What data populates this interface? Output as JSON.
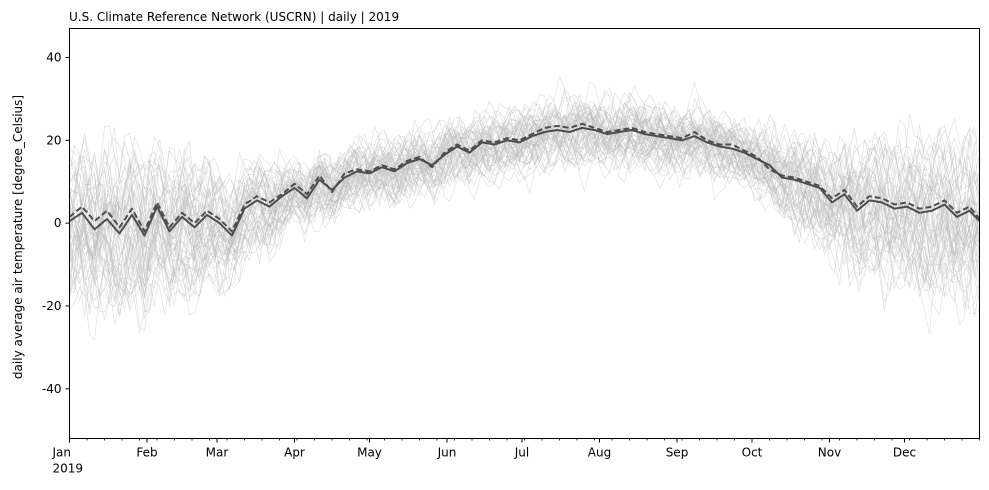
{
  "chart_data": {
    "type": "line",
    "title": "U.S. Climate Reference Network (USCRN) | daily | 2019",
    "xlabel": "",
    "ylabel": "daily average air temperature [degree_Celsius]",
    "xlim": [
      "2019-01-01",
      "2019-12-31"
    ],
    "ylim": [
      -52,
      47
    ],
    "yticks": [
      -40,
      -20,
      0,
      20,
      40
    ],
    "xticks": [
      {
        "date": "2019-01-01",
        "label": "Jan",
        "sublabel": "2019"
      },
      {
        "date": "2019-02-01",
        "label": "Feb"
      },
      {
        "date": "2019-03-01",
        "label": "Mar"
      },
      {
        "date": "2019-04-01",
        "label": "Apr"
      },
      {
        "date": "2019-05-01",
        "label": "May"
      },
      {
        "date": "2019-06-01",
        "label": "Jun"
      },
      {
        "date": "2019-07-01",
        "label": "Jul"
      },
      {
        "date": "2019-08-01",
        "label": "Aug"
      },
      {
        "date": "2019-09-01",
        "label": "Sep"
      },
      {
        "date": "2019-10-01",
        "label": "Oct"
      },
      {
        "date": "2019-11-01",
        "label": "Nov"
      },
      {
        "date": "2019-12-01",
        "label": "Dec"
      }
    ],
    "grid": false,
    "legend": "none",
    "colors": {
      "stations": "#bdbdbd",
      "mean": "#4d4d4d",
      "median": "#4d4d4d"
    },
    "series": [
      {
        "style": "solid",
        "x": [
          "2019-01-01",
          "2019-01-06",
          "2019-01-11",
          "2019-01-16",
          "2019-01-21",
          "2019-01-26",
          "2019-01-31",
          "2019-02-05",
          "2019-02-10",
          "2019-02-15",
          "2019-02-20",
          "2019-02-25",
          "2019-03-02",
          "2019-03-07",
          "2019-03-12",
          "2019-03-17",
          "2019-03-22",
          "2019-03-27",
          "2019-04-01",
          "2019-04-06",
          "2019-04-11",
          "2019-04-16",
          "2019-04-21",
          "2019-04-26",
          "2019-05-01",
          "2019-05-06",
          "2019-05-11",
          "2019-05-16",
          "2019-05-21",
          "2019-05-26",
          "2019-05-31",
          "2019-06-05",
          "2019-06-10",
          "2019-06-15",
          "2019-06-20",
          "2019-06-25",
          "2019-06-30",
          "2019-07-05",
          "2019-07-10",
          "2019-07-15",
          "2019-07-20",
          "2019-07-25",
          "2019-07-30",
          "2019-08-04",
          "2019-08-09",
          "2019-08-14",
          "2019-08-19",
          "2019-08-24",
          "2019-08-29",
          "2019-09-03",
          "2019-09-08",
          "2019-09-13",
          "2019-09-18",
          "2019-09-23",
          "2019-09-28",
          "2019-10-03",
          "2019-10-08",
          "2019-10-13",
          "2019-10-18",
          "2019-10-23",
          "2019-10-28",
          "2019-11-02",
          "2019-11-07",
          "2019-11-12",
          "2019-11-17",
          "2019-11-22",
          "2019-11-27",
          "2019-12-02",
          "2019-12-07",
          "2019-12-12",
          "2019-12-17",
          "2019-12-22",
          "2019-12-27",
          "2019-12-31"
        ],
        "values": [
          0.5,
          2.5,
          -1.5,
          1.0,
          -2.5,
          2.0,
          -3.0,
          4.0,
          -2.0,
          1.5,
          -1.0,
          2.0,
          0.0,
          -3.0,
          3.5,
          5.5,
          4.0,
          6.5,
          8.5,
          6.0,
          10.5,
          8.0,
          11.0,
          12.5,
          12.0,
          13.5,
          12.5,
          14.5,
          15.5,
          14.0,
          16.5,
          18.5,
          17.0,
          19.5,
          19.0,
          20.0,
          19.5,
          21.0,
          22.0,
          22.5,
          22.0,
          23.0,
          22.5,
          21.5,
          22.0,
          22.5,
          21.5,
          21.0,
          20.5,
          20.0,
          21.0,
          19.5,
          18.5,
          18.0,
          17.0,
          15.5,
          14.0,
          11.0,
          10.5,
          9.5,
          8.5,
          5.0,
          7.0,
          3.0,
          5.5,
          5.0,
          3.5,
          4.0,
          2.5,
          3.0,
          4.5,
          1.5,
          3.0,
          0.5
        ]
      },
      {
        "style": "dashed",
        "x": [
          "2019-01-01",
          "2019-01-06",
          "2019-01-11",
          "2019-01-16",
          "2019-01-21",
          "2019-01-26",
          "2019-01-31",
          "2019-02-05",
          "2019-02-10",
          "2019-02-15",
          "2019-02-20",
          "2019-02-25",
          "2019-03-02",
          "2019-03-07",
          "2019-03-12",
          "2019-03-17",
          "2019-03-22",
          "2019-03-27",
          "2019-04-01",
          "2019-04-06",
          "2019-04-11",
          "2019-04-16",
          "2019-04-21",
          "2019-04-26",
          "2019-05-01",
          "2019-05-06",
          "2019-05-11",
          "2019-05-16",
          "2019-05-21",
          "2019-05-26",
          "2019-05-31",
          "2019-06-05",
          "2019-06-10",
          "2019-06-15",
          "2019-06-20",
          "2019-06-25",
          "2019-06-30",
          "2019-07-05",
          "2019-07-10",
          "2019-07-15",
          "2019-07-20",
          "2019-07-25",
          "2019-07-30",
          "2019-08-04",
          "2019-08-09",
          "2019-08-14",
          "2019-08-19",
          "2019-08-24",
          "2019-08-29",
          "2019-09-03",
          "2019-09-08",
          "2019-09-13",
          "2019-09-18",
          "2019-09-23",
          "2019-09-28",
          "2019-10-03",
          "2019-10-08",
          "2019-10-13",
          "2019-10-18",
          "2019-10-23",
          "2019-10-28",
          "2019-11-02",
          "2019-11-07",
          "2019-11-12",
          "2019-11-17",
          "2019-11-22",
          "2019-11-27",
          "2019-12-02",
          "2019-12-07",
          "2019-12-12",
          "2019-12-17",
          "2019-12-22",
          "2019-12-27",
          "2019-12-31"
        ],
        "values": [
          1.5,
          4.0,
          0.5,
          3.0,
          -1.0,
          3.5,
          -2.0,
          5.0,
          -1.0,
          2.5,
          0.0,
          3.0,
          1.0,
          -2.0,
          4.5,
          6.5,
          5.0,
          7.0,
          9.5,
          7.0,
          11.5,
          7.5,
          12.0,
          13.0,
          12.5,
          14.0,
          13.0,
          15.0,
          16.0,
          13.5,
          17.0,
          19.0,
          17.5,
          20.0,
          19.5,
          20.5,
          20.0,
          21.5,
          23.0,
          23.5,
          23.0,
          24.0,
          23.0,
          22.0,
          22.5,
          23.0,
          22.0,
          21.5,
          21.0,
          20.5,
          22.0,
          20.0,
          19.0,
          19.0,
          17.5,
          16.0,
          13.0,
          11.5,
          11.0,
          10.0,
          9.0,
          6.0,
          8.0,
          4.0,
          6.5,
          6.0,
          4.5,
          5.0,
          3.5,
          4.0,
          5.5,
          2.5,
          4.0,
          1.0
        ]
      }
    ],
    "station_count": 60
  }
}
